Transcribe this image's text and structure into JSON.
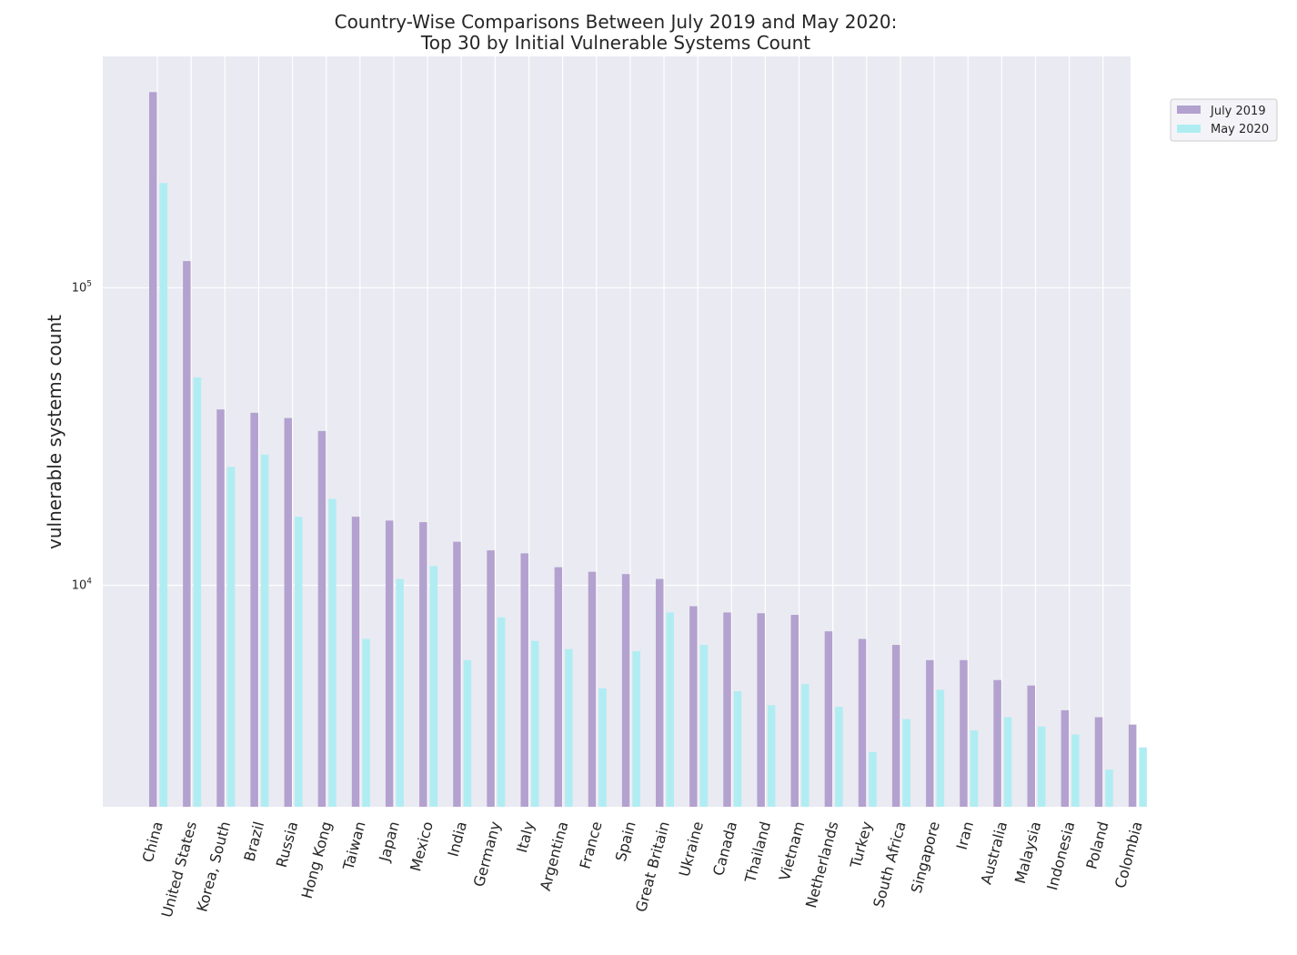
{
  "chart_data": {
    "type": "bar",
    "title": [
      "Country-Wise Comparisons Between July 2019 and May 2020:",
      "Top 30 by Initial Vulnerable Systems Count"
    ],
    "xlabel": "",
    "ylabel": "vulnerable systems count",
    "yscale": "log",
    "ylim": [
      1800,
      600000
    ],
    "yticks": [
      {
        "value": 10000,
        "base": "10",
        "exp": "4"
      },
      {
        "value": 100000,
        "base": "10",
        "exp": "5"
      }
    ],
    "grid": true,
    "legend_position": "top-right",
    "colors": {
      "July 2019": "#b3a1cf",
      "May 2020": "#b0edf2",
      "plot_bg": "#eaeaf2",
      "grid": "#ffffff"
    },
    "categories": [
      "China",
      "United States",
      "Korea, South",
      "Brazil",
      "Russia",
      "Hong Kong",
      "Taiwan",
      "Japan",
      "Mexico",
      "India",
      "Germany",
      "Italy",
      "Argentina",
      "France",
      "Spain",
      "Great Britain",
      "Ukraine",
      "Canada",
      "Thailand",
      "Vietnam",
      "Netherlands",
      "Turkey",
      "South Africa",
      "Singapore",
      "Iran",
      "Australia",
      "Malaysia",
      "Indonesia",
      "Poland",
      "Colombia"
    ],
    "series": [
      {
        "name": "July 2019",
        "values": [
          455000,
          123000,
          39000,
          38000,
          36500,
          33000,
          17000,
          16500,
          16300,
          14000,
          13100,
          12800,
          11500,
          11100,
          10900,
          10500,
          8500,
          8100,
          8050,
          7950,
          7000,
          6600,
          6300,
          5600,
          5600,
          4800,
          4600,
          3800,
          3600,
          3400
        ]
      },
      {
        "name": "May 2020",
        "values": [
          225000,
          50000,
          25000,
          27500,
          17000,
          19500,
          6600,
          10500,
          11600,
          5600,
          7800,
          6500,
          6100,
          4500,
          6000,
          8100,
          6300,
          4400,
          3950,
          4650,
          3900,
          2750,
          3550,
          4450,
          3250,
          3600,
          3350,
          3150,
          2400,
          2850
        ]
      }
    ]
  }
}
